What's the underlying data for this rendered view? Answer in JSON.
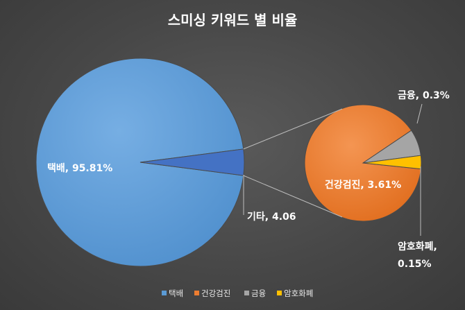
{
  "chart_data": {
    "type": "pie",
    "title": "스미싱 키워드 별 비율",
    "main_pie": {
      "slices": [
        {
          "name": "택배",
          "value": 95.81,
          "label": "택배, 95.81%",
          "color": "#5b9bd5"
        },
        {
          "name": "기타",
          "value": 4.06,
          "label": "기타, 4.06",
          "color": "#4472c4"
        }
      ]
    },
    "secondary_pie": {
      "slices": [
        {
          "name": "건강검진",
          "value": 3.61,
          "label": "건강검진, 3.61%",
          "color": "#ed7d31"
        },
        {
          "name": "금융",
          "value": 0.3,
          "label": "금융, 0.3%",
          "color": "#a5a5a5"
        },
        {
          "name": "암호화폐",
          "value": 0.15,
          "label_lines": [
            "암호화폐,",
            "0.15%"
          ],
          "color": "#ffc000"
        }
      ]
    },
    "legend": {
      "position": "bottom",
      "entries": [
        {
          "name": "택배",
          "color": "#5b9bd5"
        },
        {
          "name": "건강검진",
          "color": "#ed7d31"
        },
        {
          "name": "금융",
          "color": "#a5a5a5"
        },
        {
          "name": "암호화폐",
          "color": "#ffc000"
        }
      ]
    }
  }
}
